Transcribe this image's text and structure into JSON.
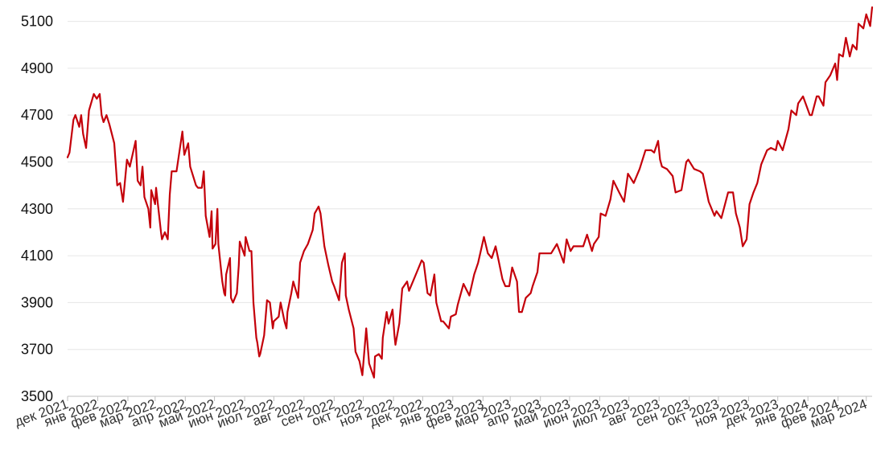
{
  "chart_data": {
    "type": "line",
    "title": "",
    "xlabel": "",
    "ylabel": "",
    "ylim": [
      3500,
      5150
    ],
    "yticks": [
      3500,
      3700,
      3900,
      4100,
      4300,
      4500,
      4700,
      4900,
      5100
    ],
    "grid": true,
    "legend": "none",
    "line_color": "#c4000a",
    "x_tick_labels": [
      "дек 2021",
      "янв 2022",
      "фев 2022",
      "мар 2022",
      "апр 2022",
      "май 2022",
      "июн 2022",
      "июл 2022",
      "авг 2022",
      "сен 2022",
      "окт 2022",
      "ноя 2022",
      "дек 2022",
      "янв 2023",
      "фев 2023",
      "мар 2023",
      "апр 2023",
      "май 2023",
      "июн 2023",
      "июл 2023",
      "авг 2023",
      "сен 2023",
      "окт 2023",
      "ноя 2023",
      "дек 2023",
      "янв 2024",
      "фев 2024",
      "мар 2024"
    ],
    "x_tick_dates": [
      "2021-12-01",
      "2022-01-01",
      "2022-02-01",
      "2022-03-01",
      "2022-04-01",
      "2022-05-01",
      "2022-06-01",
      "2022-07-01",
      "2022-08-01",
      "2022-09-01",
      "2022-10-01",
      "2022-11-01",
      "2022-12-01",
      "2023-01-01",
      "2023-02-01",
      "2023-03-01",
      "2023-04-01",
      "2023-05-01",
      "2023-06-01",
      "2023-07-01",
      "2023-08-01",
      "2023-09-01",
      "2023-10-01",
      "2023-11-01",
      "2023-12-01",
      "2024-01-01",
      "2024-02-01",
      "2024-03-01"
    ],
    "series": [
      {
        "points": [
          [
            "2021-12-01",
            4520
          ],
          [
            "2021-12-03",
            4540
          ],
          [
            "2021-12-07",
            4680
          ],
          [
            "2021-12-09",
            4700
          ],
          [
            "2021-12-13",
            4650
          ],
          [
            "2021-12-15",
            4700
          ],
          [
            "2021-12-17",
            4620
          ],
          [
            "2021-12-20",
            4560
          ],
          [
            "2021-12-23",
            4720
          ],
          [
            "2021-12-28",
            4790
          ],
          [
            "2021-12-31",
            4770
          ],
          [
            "2022-01-03",
            4790
          ],
          [
            "2022-01-05",
            4700
          ],
          [
            "2022-01-07",
            4670
          ],
          [
            "2022-01-10",
            4700
          ],
          [
            "2022-01-13",
            4660
          ],
          [
            "2022-01-18",
            4580
          ],
          [
            "2022-01-21",
            4400
          ],
          [
            "2022-01-24",
            4410
          ],
          [
            "2022-01-27",
            4330
          ],
          [
            "2022-01-31",
            4510
          ],
          [
            "2022-02-03",
            4480
          ],
          [
            "2022-02-09",
            4590
          ],
          [
            "2022-02-11",
            4420
          ],
          [
            "2022-02-14",
            4400
          ],
          [
            "2022-02-16",
            4480
          ],
          [
            "2022-02-18",
            4350
          ],
          [
            "2022-02-22",
            4300
          ],
          [
            "2022-02-24",
            4220
          ],
          [
            "2022-02-25",
            4380
          ],
          [
            "2022-03-01",
            4320
          ],
          [
            "2022-03-02",
            4390
          ],
          [
            "2022-03-07",
            4200
          ],
          [
            "2022-03-08",
            4170
          ],
          [
            "2022-03-11",
            4200
          ],
          [
            "2022-03-14",
            4170
          ],
          [
            "2022-03-16",
            4360
          ],
          [
            "2022-03-18",
            4460
          ],
          [
            "2022-03-23",
            4460
          ],
          [
            "2022-03-29",
            4630
          ],
          [
            "2022-03-31",
            4530
          ],
          [
            "2022-04-04",
            4580
          ],
          [
            "2022-04-06",
            4480
          ],
          [
            "2022-04-12",
            4400
          ],
          [
            "2022-04-14",
            4390
          ],
          [
            "2022-04-18",
            4390
          ],
          [
            "2022-04-20",
            4460
          ],
          [
            "2022-04-22",
            4270
          ],
          [
            "2022-04-26",
            4180
          ],
          [
            "2022-04-28",
            4290
          ],
          [
            "2022-04-29",
            4130
          ],
          [
            "2022-05-02",
            4150
          ],
          [
            "2022-05-04",
            4300
          ],
          [
            "2022-05-05",
            4150
          ],
          [
            "2022-05-09",
            3990
          ],
          [
            "2022-05-11",
            3940
          ],
          [
            "2022-05-12",
            3930
          ],
          [
            "2022-05-13",
            4020
          ],
          [
            "2022-05-17",
            4090
          ],
          [
            "2022-05-18",
            3920
          ],
          [
            "2022-05-20",
            3900
          ],
          [
            "2022-05-24",
            3940
          ],
          [
            "2022-05-26",
            4060
          ],
          [
            "2022-05-27",
            4160
          ],
          [
            "2022-06-01",
            4100
          ],
          [
            "2022-06-02",
            4180
          ],
          [
            "2022-06-06",
            4120
          ],
          [
            "2022-06-08",
            4120
          ],
          [
            "2022-06-10",
            3900
          ],
          [
            "2022-06-13",
            3750
          ],
          [
            "2022-06-14",
            3730
          ],
          [
            "2022-06-16",
            3670
          ],
          [
            "2022-06-17",
            3680
          ],
          [
            "2022-06-21",
            3760
          ],
          [
            "2022-06-24",
            3910
          ],
          [
            "2022-06-27",
            3900
          ],
          [
            "2022-06-30",
            3790
          ],
          [
            "2022-07-01",
            3820
          ],
          [
            "2022-07-06",
            3840
          ],
          [
            "2022-07-08",
            3900
          ],
          [
            "2022-07-12",
            3820
          ],
          [
            "2022-07-14",
            3790
          ],
          [
            "2022-07-15",
            3860
          ],
          [
            "2022-07-19",
            3940
          ],
          [
            "2022-07-21",
            3990
          ],
          [
            "2022-07-26",
            3920
          ],
          [
            "2022-07-28",
            4070
          ],
          [
            "2022-08-01",
            4120
          ],
          [
            "2022-08-05",
            4150
          ],
          [
            "2022-08-10",
            4210
          ],
          [
            "2022-08-12",
            4280
          ],
          [
            "2022-08-16",
            4310
          ],
          [
            "2022-08-18",
            4280
          ],
          [
            "2022-08-22",
            4140
          ],
          [
            "2022-08-26",
            4060
          ],
          [
            "2022-08-30",
            3990
          ],
          [
            "2022-09-01",
            3970
          ],
          [
            "2022-09-06",
            3910
          ],
          [
            "2022-09-09",
            4070
          ],
          [
            "2022-09-12",
            4110
          ],
          [
            "2022-09-13",
            3930
          ],
          [
            "2022-09-16",
            3870
          ],
          [
            "2022-09-21",
            3790
          ],
          [
            "2022-09-23",
            3690
          ],
          [
            "2022-09-27",
            3650
          ],
          [
            "2022-09-30",
            3590
          ],
          [
            "2022-10-04",
            3790
          ],
          [
            "2022-10-07",
            3640
          ],
          [
            "2022-10-12",
            3580
          ],
          [
            "2022-10-13",
            3670
          ],
          [
            "2022-10-17",
            3680
          ],
          [
            "2022-10-20",
            3660
          ],
          [
            "2022-10-21",
            3750
          ],
          [
            "2022-10-25",
            3860
          ],
          [
            "2022-10-27",
            3810
          ],
          [
            "2022-10-31",
            3870
          ],
          [
            "2022-11-02",
            3760
          ],
          [
            "2022-11-03",
            3720
          ],
          [
            "2022-11-07",
            3810
          ],
          [
            "2022-11-10",
            3960
          ],
          [
            "2022-11-15",
            3990
          ],
          [
            "2022-11-17",
            3950
          ],
          [
            "2022-11-22",
            4000
          ],
          [
            "2022-11-25",
            4030
          ],
          [
            "2022-11-30",
            4080
          ],
          [
            "2022-12-02",
            4070
          ],
          [
            "2022-12-06",
            3940
          ],
          [
            "2022-12-09",
            3930
          ],
          [
            "2022-12-13",
            4020
          ],
          [
            "2022-12-15",
            3900
          ],
          [
            "2022-12-20",
            3820
          ],
          [
            "2022-12-22",
            3820
          ],
          [
            "2022-12-28",
            3790
          ],
          [
            "2022-12-30",
            3840
          ],
          [
            "2023-01-04",
            3850
          ],
          [
            "2023-01-06",
            3890
          ],
          [
            "2023-01-12",
            3980
          ],
          [
            "2023-01-18",
            3930
          ],
          [
            "2023-01-23",
            4020
          ],
          [
            "2023-01-27",
            4070
          ],
          [
            "2023-02-02",
            4180
          ],
          [
            "2023-02-06",
            4110
          ],
          [
            "2023-02-10",
            4090
          ],
          [
            "2023-02-14",
            4140
          ],
          [
            "2023-02-17",
            4080
          ],
          [
            "2023-02-21",
            4000
          ],
          [
            "2023-02-24",
            3970
          ],
          [
            "2023-02-28",
            3970
          ],
          [
            "2023-03-03",
            4050
          ],
          [
            "2023-03-08",
            3990
          ],
          [
            "2023-03-10",
            3860
          ],
          [
            "2023-03-13",
            3860
          ],
          [
            "2023-03-15",
            3890
          ],
          [
            "2023-03-17",
            3920
          ],
          [
            "2023-03-22",
            3940
          ],
          [
            "2023-03-24",
            3970
          ],
          [
            "2023-03-29",
            4030
          ],
          [
            "2023-03-31",
            4110
          ],
          [
            "2023-04-06",
            4110
          ],
          [
            "2023-04-12",
            4110
          ],
          [
            "2023-04-18",
            4150
          ],
          [
            "2023-04-25",
            4070
          ],
          [
            "2023-04-28",
            4170
          ],
          [
            "2023-05-02",
            4120
          ],
          [
            "2023-05-05",
            4140
          ],
          [
            "2023-05-10",
            4140
          ],
          [
            "2023-05-15",
            4140
          ],
          [
            "2023-05-19",
            4190
          ],
          [
            "2023-05-24",
            4120
          ],
          [
            "2023-05-26",
            4150
          ],
          [
            "2023-05-31",
            4180
          ],
          [
            "2023-06-02",
            4280
          ],
          [
            "2023-06-07",
            4270
          ],
          [
            "2023-06-12",
            4340
          ],
          [
            "2023-06-15",
            4420
          ],
          [
            "2023-06-21",
            4370
          ],
          [
            "2023-06-26",
            4330
          ],
          [
            "2023-06-30",
            4450
          ],
          [
            "2023-07-06",
            4410
          ],
          [
            "2023-07-12",
            4470
          ],
          [
            "2023-07-18",
            4550
          ],
          [
            "2023-07-24",
            4550
          ],
          [
            "2023-07-27",
            4540
          ],
          [
            "2023-07-31",
            4590
          ],
          [
            "2023-08-02",
            4510
          ],
          [
            "2023-08-04",
            4480
          ],
          [
            "2023-08-09",
            4470
          ],
          [
            "2023-08-15",
            4440
          ],
          [
            "2023-08-18",
            4370
          ],
          [
            "2023-08-24",
            4380
          ],
          [
            "2023-08-29",
            4500
          ],
          [
            "2023-08-31",
            4510
          ],
          [
            "2023-09-06",
            4470
          ],
          [
            "2023-09-12",
            4460
          ],
          [
            "2023-09-15",
            4450
          ],
          [
            "2023-09-21",
            4330
          ],
          [
            "2023-09-27",
            4270
          ],
          [
            "2023-09-29",
            4290
          ],
          [
            "2023-10-04",
            4260
          ],
          [
            "2023-10-11",
            4370
          ],
          [
            "2023-10-16",
            4370
          ],
          [
            "2023-10-19",
            4280
          ],
          [
            "2023-10-23",
            4220
          ],
          [
            "2023-10-26",
            4140
          ],
          [
            "2023-10-30",
            4170
          ],
          [
            "2023-11-02",
            4320
          ],
          [
            "2023-11-06",
            4370
          ],
          [
            "2023-11-10",
            4410
          ],
          [
            "2023-11-14",
            4490
          ],
          [
            "2023-11-20",
            4550
          ],
          [
            "2023-11-24",
            4560
          ],
          [
            "2023-11-29",
            4550
          ],
          [
            "2023-12-01",
            4590
          ],
          [
            "2023-12-06",
            4550
          ],
          [
            "2023-12-12",
            4640
          ],
          [
            "2023-12-15",
            4720
          ],
          [
            "2023-12-20",
            4700
          ],
          [
            "2023-12-22",
            4750
          ],
          [
            "2023-12-27",
            4780
          ],
          [
            "2024-01-03",
            4700
          ],
          [
            "2024-01-05",
            4700
          ],
          [
            "2024-01-10",
            4780
          ],
          [
            "2024-01-12",
            4780
          ],
          [
            "2024-01-17",
            4740
          ],
          [
            "2024-01-19",
            4840
          ],
          [
            "2024-01-24",
            4870
          ],
          [
            "2024-01-29",
            4920
          ],
          [
            "2024-01-31",
            4850
          ],
          [
            "2024-02-02",
            4960
          ],
          [
            "2024-02-06",
            4950
          ],
          [
            "2024-02-09",
            5030
          ],
          [
            "2024-02-13",
            4950
          ],
          [
            "2024-02-16",
            5000
          ],
          [
            "2024-02-20",
            4980
          ],
          [
            "2024-02-22",
            5090
          ],
          [
            "2024-02-27",
            5070
          ],
          [
            "2024-03-01",
            5130
          ],
          [
            "2024-03-05",
            5080
          ],
          [
            "2024-03-07",
            5160
          ]
        ]
      }
    ]
  }
}
